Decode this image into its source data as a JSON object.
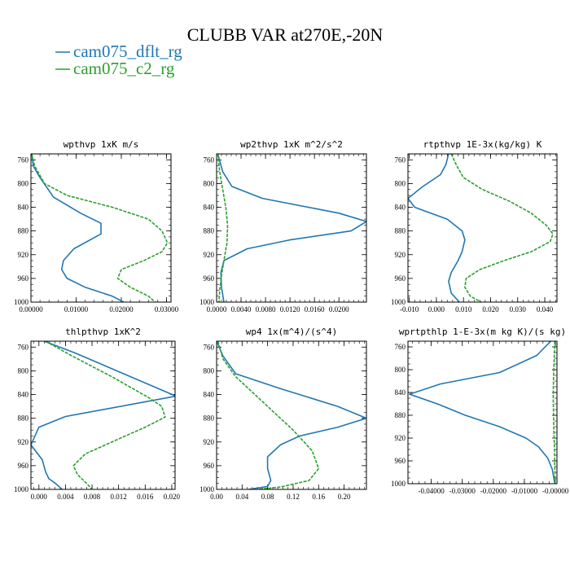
{
  "figure": {
    "title": "CLUBB VAR at270E,-20N",
    "legend": [
      {
        "name": "cam075_dflt_rg",
        "color": "#1f77b4"
      },
      {
        "name": "cam075_c2_rg",
        "color": "#2ca02c"
      }
    ]
  },
  "chart_data": [
    {
      "type": "line",
      "title": "wpthvp  1xK m/s",
      "y_axis_reversed": true,
      "ylim": [
        1000,
        750
      ],
      "yticks": [
        1000,
        960,
        920,
        880,
        840,
        800,
        760
      ],
      "ytick_labels": [
        "1000",
        "960",
        "920",
        "880",
        "840",
        "800",
        "760"
      ],
      "xlim": [
        0,
        0.031
      ],
      "xticks": [
        0,
        0.01,
        0.02,
        0.03
      ],
      "xtick_labels": [
        "0.00000",
        "0.01000",
        "0.02000",
        "0.03000"
      ],
      "series": [
        {
          "name": "cam075_dflt_rg",
          "color": "#1f77b4",
          "dashed": false,
          "x": [
            0.0002,
            0.0005,
            0.002,
            0.005,
            0.011,
            0.0155,
            0.0155,
            0.0095,
            0.0072,
            0.0068,
            0.008,
            0.012,
            0.018,
            0.0205
          ],
          "y": [
            750,
            770,
            790,
            823,
            850,
            867,
            885,
            910,
            930,
            945,
            960,
            975,
            990,
            1000
          ]
        },
        {
          "name": "cam075_c2_rg",
          "color": "#2ca02c",
          "dashed": true,
          "x": [
            0.0002,
            0.0008,
            0.003,
            0.008,
            0.018,
            0.026,
            0.029,
            0.0302,
            0.029,
            0.025,
            0.02,
            0.0192,
            0.022,
            0.026,
            0.0275
          ],
          "y": [
            750,
            770,
            800,
            820,
            840,
            860,
            880,
            900,
            915,
            930,
            945,
            960,
            975,
            990,
            1000
          ]
        }
      ]
    },
    {
      "type": "line",
      "title": "wp2thvp  1xK m^2/s^2",
      "y_axis_reversed": true,
      "ylim": [
        1000,
        750
      ],
      "yticks": [
        1000,
        960,
        920,
        880,
        840,
        800,
        760
      ],
      "ytick_labels": [
        "1000",
        "960",
        "920",
        "880",
        "840",
        "800",
        "760"
      ],
      "xlim": [
        0,
        0.0245
      ],
      "xticks": [
        0,
        0.004,
        0.008,
        0.012,
        0.016,
        0.02
      ],
      "xtick_labels": [
        "0.0000",
        "0.0040",
        "0.0080",
        "0.0120",
        "0.0160",
        "0.0200"
      ],
      "series": [
        {
          "name": "cam075_dflt_rg",
          "color": "#1f77b4",
          "dashed": false,
          "x": [
            0.0002,
            0.001,
            0.0025,
            0.0075,
            0.02,
            0.0245,
            0.022,
            0.012,
            0.005,
            0.0012,
            0.0007,
            0.0008,
            0.0012
          ],
          "y": [
            750,
            780,
            805,
            825,
            850,
            864,
            880,
            895,
            910,
            930,
            950,
            975,
            1000
          ]
        },
        {
          "name": "cam075_c2_rg",
          "color": "#2ca02c",
          "dashed": true,
          "x": [
            0.0002,
            0.0005,
            0.001,
            0.0015,
            0.0018,
            0.0017,
            0.0012,
            0.0008,
            0.0005,
            0.0004
          ],
          "y": [
            750,
            780,
            810,
            840,
            870,
            900,
            930,
            955,
            980,
            1000
          ]
        }
      ]
    },
    {
      "type": "line",
      "title": "rtpthvp  1E-3x(kg/kg) K",
      "y_axis_reversed": true,
      "ylim": [
        1000,
        750
      ],
      "yticks": [
        1000,
        960,
        920,
        880,
        840,
        800,
        760
      ],
      "ytick_labels": [
        "1000",
        "960",
        "920",
        "880",
        "840",
        "800",
        "760"
      ],
      "xlim": [
        -0.0105,
        0.0445
      ],
      "xticks": [
        -0.01,
        0,
        0.01,
        0.02,
        0.03,
        0.04
      ],
      "xtick_labels": [
        "-0.010",
        "0.000",
        "0.010",
        "0.020",
        "0.030",
        "0.040"
      ],
      "series": [
        {
          "name": "cam075_dflt_rg",
          "color": "#1f77b4",
          "dashed": false,
          "x": [
            0.0045,
            0.0035,
            0.0015,
            -0.005,
            -0.0105,
            -0.008,
            -0.005,
            0.004,
            0.0095,
            0.0105,
            0.0095,
            0.008,
            0.0055,
            0.0045,
            0.0055,
            0.0085
          ],
          "y": [
            750,
            768,
            785,
            805,
            825,
            840,
            845,
            860,
            880,
            895,
            915,
            930,
            950,
            965,
            985,
            1000
          ]
        },
        {
          "name": "cam075_c2_rg",
          "color": "#2ca02c",
          "dashed": true,
          "x": [
            0.0055,
            0.0075,
            0.01,
            0.017,
            0.027,
            0.035,
            0.0405,
            0.043,
            0.042,
            0.035,
            0.025,
            0.016,
            0.011,
            0.0105,
            0.0125,
            0.0165
          ],
          "y": [
            750,
            770,
            790,
            810,
            830,
            850,
            870,
            885,
            898,
            915,
            930,
            945,
            960,
            975,
            990,
            1000
          ]
        }
      ]
    },
    {
      "type": "line",
      "title": "thlpthvp  1xK^2",
      "y_axis_reversed": true,
      "ylim": [
        1000,
        750
      ],
      "yticks": [
        1000,
        960,
        920,
        880,
        840,
        800,
        760
      ],
      "ytick_labels": [
        "1000",
        "960",
        "920",
        "880",
        "840",
        "800",
        "760"
      ],
      "xlim": [
        -0.0012,
        0.0205
      ],
      "xticks": [
        0,
        0.004,
        0.008,
        0.012,
        0.016,
        0.02
      ],
      "xtick_labels": [
        "0.000",
        "0.004",
        "0.008",
        "0.012",
        "0.016",
        "0.020"
      ],
      "series": [
        {
          "name": "cam075_dflt_rg",
          "color": "#1f77b4",
          "dashed": false,
          "x": [
            0.0008,
            0.0055,
            0.0205,
            0.0205,
            0.004,
            0.0,
            -0.0012,
            0.0005,
            0.001,
            0.0015,
            0.0025,
            0.0035
          ],
          "y": [
            750,
            770,
            842,
            843,
            877,
            895,
            925,
            950,
            970,
            982,
            990,
            1000
          ]
        },
        {
          "name": "cam075_c2_rg",
          "color": "#2ca02c",
          "dashed": true,
          "x": [
            0.001,
            0.005,
            0.011,
            0.0165,
            0.0185,
            0.019,
            0.016,
            0.012,
            0.007,
            0.0052,
            0.0058,
            0.0072,
            0.008
          ],
          "y": [
            750,
            775,
            810,
            845,
            860,
            878,
            895,
            915,
            940,
            960,
            975,
            990,
            1000
          ]
        }
      ]
    },
    {
      "type": "line",
      "title": "wp4  1x(m^4)/(s^4)",
      "y_axis_reversed": true,
      "ylim": [
        1000,
        750
      ],
      "yticks": [
        1000,
        960,
        920,
        880,
        840,
        800,
        760
      ],
      "ytick_labels": [
        "1000",
        "960",
        "920",
        "880",
        "840",
        "800",
        "760"
      ],
      "xlim": [
        0,
        0.235
      ],
      "xticks": [
        0,
        0.04,
        0.08,
        0.12,
        0.16,
        0.2
      ],
      "xtick_labels": [
        "0.00",
        "0.04",
        "0.08",
        "0.12",
        "0.16",
        "0.20"
      ],
      "series": [
        {
          "name": "cam075_dflt_rg",
          "color": "#1f77b4",
          "dashed": false,
          "x": [
            0.0,
            0.01,
            0.03,
            0.1,
            0.19,
            0.235,
            0.19,
            0.13,
            0.1,
            0.08,
            0.08,
            0.085,
            0.08,
            0.05
          ],
          "y": [
            750,
            775,
            805,
            830,
            860,
            880,
            895,
            910,
            925,
            945,
            965,
            985,
            995,
            1000
          ]
        },
        {
          "name": "cam075_c2_rg",
          "color": "#2ca02c",
          "dashed": true,
          "x": [
            0.002,
            0.01,
            0.03,
            0.06,
            0.09,
            0.12,
            0.15,
            0.16,
            0.145,
            0.1,
            0.065
          ],
          "y": [
            750,
            780,
            810,
            840,
            870,
            900,
            935,
            965,
            985,
            996,
            1000
          ]
        }
      ]
    },
    {
      "type": "line",
      "title": "wprtpthlp  1-E-3x(m kg K)/(s kg)",
      "y_axis_reversed": true,
      "ylim": [
        1000,
        750
      ],
      "yticks": [
        1000,
        960,
        920,
        880,
        840,
        800,
        760
      ],
      "ytick_labels": [
        "1000",
        "960",
        "920",
        "880",
        "840",
        "800",
        "760"
      ],
      "xlim": [
        -0.0475,
        0.0005
      ],
      "xticks": [
        -0.04,
        -0.03,
        -0.02,
        -0.01,
        0
      ],
      "xtick_labels": [
        "-0.04000",
        "-0.03000",
        "-0.02000",
        "-0.01000",
        "-0.00000"
      ],
      "series": [
        {
          "name": "cam075_dflt_rg",
          "color": "#1f77b4",
          "dashed": false,
          "x": [
            -0.0015,
            -0.006,
            -0.018,
            -0.037,
            -0.047,
            -0.038,
            -0.029,
            -0.018,
            -0.0095,
            -0.0055,
            -0.0025,
            -0.001,
            -0.0002
          ],
          "y": [
            750,
            775,
            805,
            825,
            843,
            860,
            880,
            900,
            920,
            935,
            955,
            975,
            1000
          ]
        },
        {
          "name": "cam075_c2_rg",
          "color": "#2ca02c",
          "dashed": true,
          "x": [
            -0.0002,
            -0.0004,
            -0.0006,
            -0.0007,
            -0.0006,
            -0.0005,
            -0.0003,
            -0.0002,
            -0.0001
          ],
          "y": [
            750,
            780,
            810,
            850,
            880,
            910,
            940,
            970,
            1000
          ]
        }
      ]
    }
  ]
}
